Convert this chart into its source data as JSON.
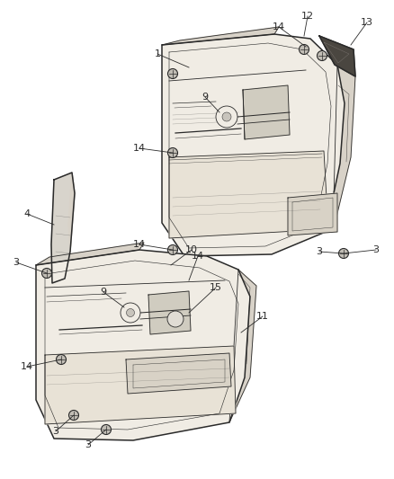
{
  "bg_color": "#ffffff",
  "fig_width": 4.38,
  "fig_height": 5.33,
  "dpi": 100,
  "draw_color": "#2a2a2a",
  "panel_fill": "#f0ece4",
  "panel_shadow": "#d8d2c8",
  "strip_fill": "#e0dbd0",
  "screw_fill": "#c0bcb4",
  "latch_fill": "#d8d2c8"
}
